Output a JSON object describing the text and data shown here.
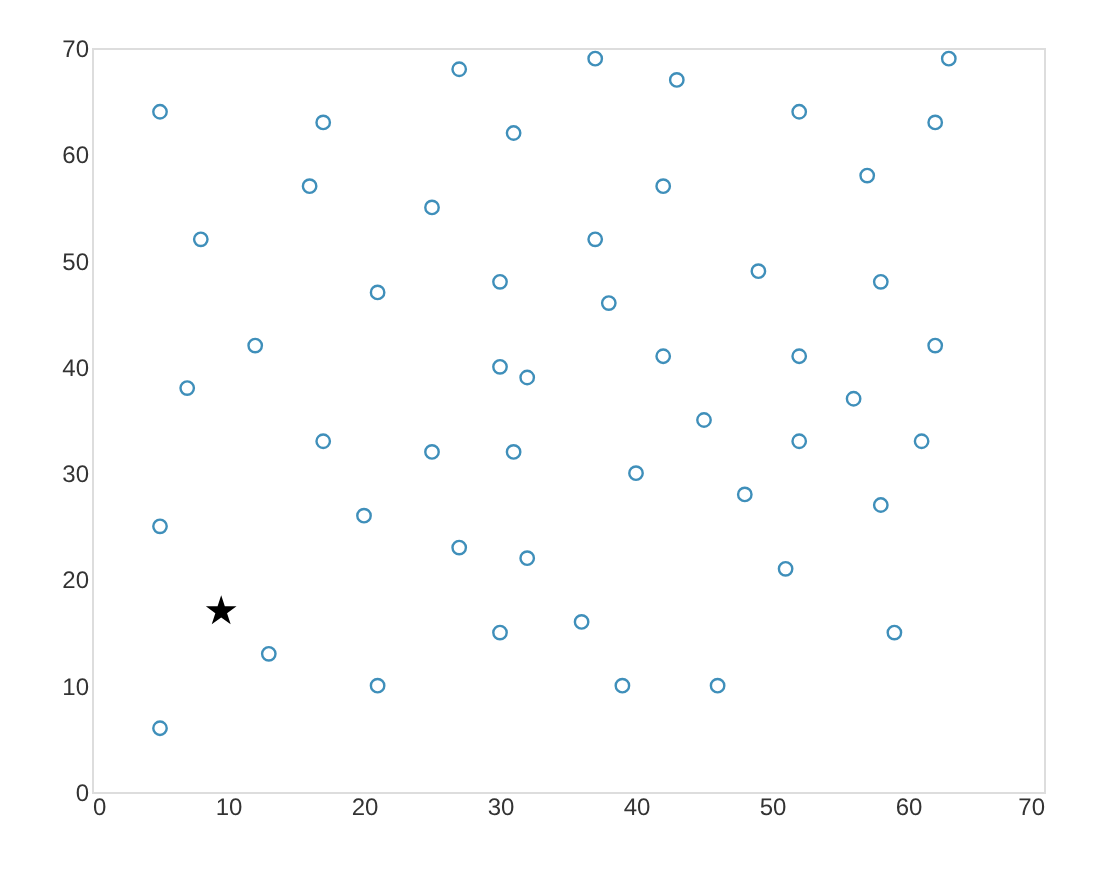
{
  "chart_data": {
    "type": "scatter",
    "xlim": [
      0,
      70
    ],
    "ylim": [
      0,
      70
    ],
    "xticks": [
      0,
      10,
      20,
      30,
      40,
      50,
      60,
      70
    ],
    "yticks": [
      0,
      10,
      20,
      30,
      40,
      50,
      60,
      70
    ],
    "grid": false,
    "series": [
      {
        "color": "#3f8fba",
        "marker": "circle",
        "x": [
          5,
          27,
          37,
          43,
          63,
          17,
          31,
          52,
          62,
          16,
          25,
          42,
          57,
          8,
          37,
          21,
          30,
          38,
          49,
          58,
          12,
          7,
          30,
          32,
          42,
          52,
          62,
          56,
          45,
          17,
          25,
          31,
          40,
          52,
          61,
          48,
          58,
          5,
          20,
          27,
          32,
          51,
          13,
          21,
          30,
          36,
          39,
          46,
          59,
          5
        ],
        "values": [
          64,
          68,
          69,
          67,
          69,
          63,
          62,
          64,
          63,
          57,
          55,
          57,
          58,
          52,
          52,
          47,
          48,
          46,
          49,
          48,
          42,
          38,
          40,
          39,
          41,
          41,
          42,
          37,
          35,
          33,
          32,
          32,
          30,
          33,
          33,
          28,
          27,
          25,
          26,
          23,
          22,
          21,
          13,
          10,
          15,
          16,
          10,
          10,
          15,
          6
        ]
      },
      {
        "color": "#000000",
        "marker": "star",
        "x": [
          9.5
        ],
        "values": [
          17
        ]
      }
    ]
  }
}
